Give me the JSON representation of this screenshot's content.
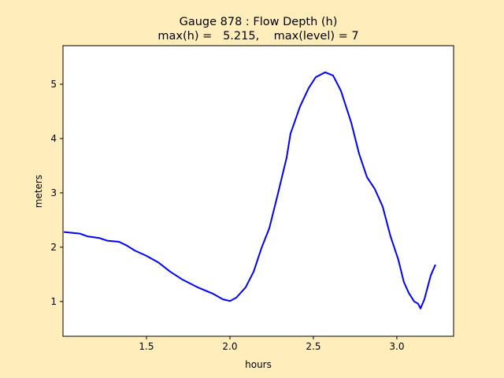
{
  "chart_data": {
    "type": "line",
    "title": "Gauge 878 : Flow Depth (h)",
    "subtitle": "max(h) =   5.215,    max(level) = 7",
    "xlabel": "hours",
    "ylabel": "meters",
    "xlim": [
      1.0,
      3.34
    ],
    "ylim": [
      0.36,
      5.71
    ],
    "xticks": [
      1.5,
      2.0,
      2.5,
      3.0
    ],
    "xtick_labels": [
      "1.5",
      "2.0",
      "2.5",
      "3.0"
    ],
    "yticks": [
      1,
      2,
      3,
      4,
      5
    ],
    "ytick_labels": [
      "1",
      "2",
      "3",
      "4",
      "5"
    ],
    "grid": false,
    "colors": {
      "line": "#0000ff",
      "background": "#ffedbb",
      "axes": "#ffffff"
    },
    "series": [
      {
        "x": [
          1.005,
          1.1,
          1.146,
          1.217,
          1.264,
          1.335,
          1.382,
          1.429,
          1.5,
          1.571,
          1.642,
          1.712,
          1.807,
          1.901,
          1.958,
          2.0,
          2.038,
          2.094,
          2.142,
          2.19,
          2.236,
          2.283,
          2.34,
          2.363,
          2.387,
          2.42,
          2.472,
          2.514,
          2.571,
          2.618,
          2.665,
          2.726,
          2.774,
          2.821,
          2.868,
          2.915,
          2.962,
          3.009,
          3.042,
          3.071,
          3.104,
          3.127,
          3.142,
          3.165,
          3.203,
          3.231
        ],
        "y": [
          2.28,
          2.25,
          2.2,
          2.17,
          2.12,
          2.1,
          2.03,
          1.94,
          1.84,
          1.72,
          1.55,
          1.41,
          1.26,
          1.14,
          1.04,
          1.01,
          1.07,
          1.26,
          1.55,
          1.99,
          2.35,
          2.93,
          3.65,
          4.09,
          4.3,
          4.59,
          4.93,
          5.13,
          5.22,
          5.16,
          4.88,
          4.3,
          3.72,
          3.29,
          3.07,
          2.75,
          2.2,
          1.77,
          1.36,
          1.16,
          1.0,
          0.96,
          0.87,
          1.04,
          1.48,
          1.68
        ]
      }
    ]
  }
}
